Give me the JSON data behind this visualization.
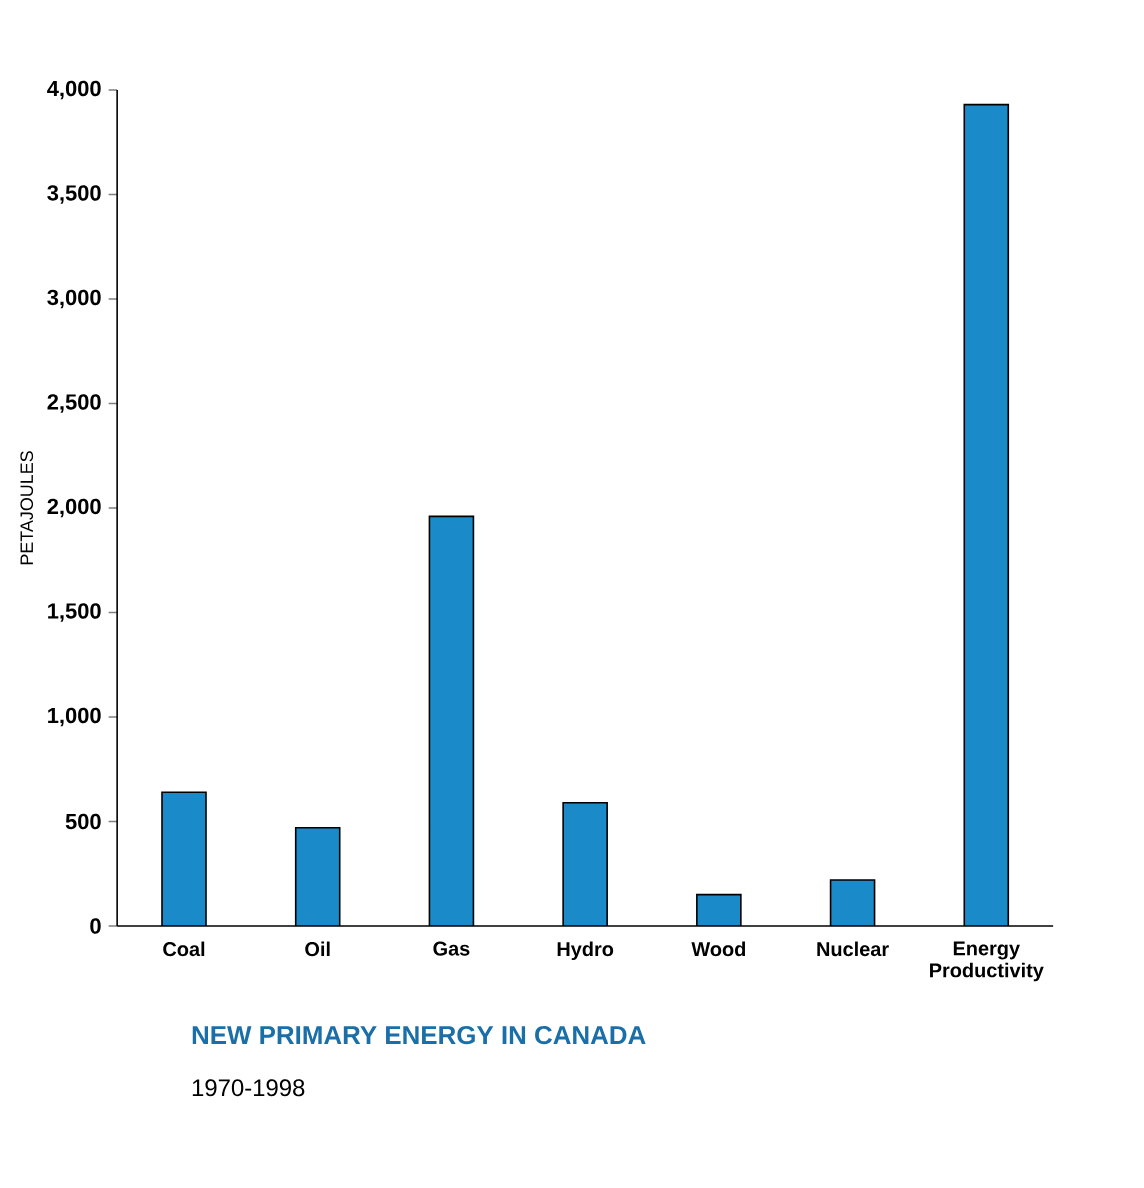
{
  "chart_data": {
    "type": "bar",
    "title": "NEW PRIMARY ENERGY IN CANADA",
    "subtitle": "1970-1998",
    "ylabel": "PETAJOULES",
    "categories": [
      "Coal",
      "Oil",
      "Gas",
      "Hydro",
      "Wood",
      "Nuclear",
      "Energy Productivity"
    ],
    "values": [
      640,
      470,
      1960,
      590,
      150,
      220,
      3930
    ],
    "color": "#1a8bc8",
    "ylim": [
      0,
      4000
    ],
    "yticks": [
      {
        "value": 0,
        "label": "0"
      },
      {
        "value": 500,
        "label": "500"
      },
      {
        "value": 1000,
        "label": "1,000"
      },
      {
        "value": 1500,
        "label": "1,500"
      },
      {
        "value": 2000,
        "label": "2,000"
      },
      {
        "value": 2500,
        "label": "2,500"
      },
      {
        "value": 3000,
        "label": "3,000"
      },
      {
        "value": 3500,
        "label": "3,500"
      },
      {
        "value": 4000,
        "label": "4,000"
      }
    ],
    "grid": false
  }
}
